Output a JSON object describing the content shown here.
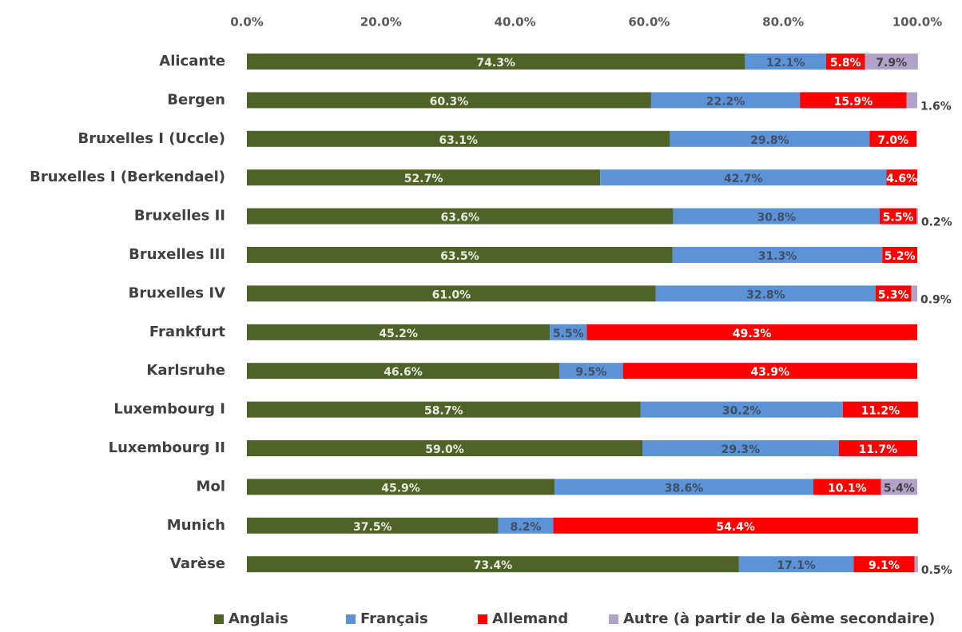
{
  "chart_data": {
    "type": "stacked_barh",
    "categories": [
      "Alicante",
      "Bergen",
      "Bruxelles I (Uccle)",
      "Bruxelles I (Berkendael)",
      "Bruxelles II",
      "Bruxelles III",
      "Bruxelles IV",
      "Frankfurt",
      "Karlsruhe",
      "Luxembourg I",
      "Luxembourg II",
      "Mol",
      "Munich",
      "Varèse"
    ],
    "series": [
      {
        "name": "Anglais",
        "color": "#4f6228",
        "values": [
          74.3,
          60.3,
          63.1,
          52.7,
          63.6,
          63.5,
          61.0,
          45.2,
          46.6,
          58.7,
          59.0,
          45.9,
          37.5,
          73.4
        ],
        "value_labels": [
          "74.3%",
          "60.3%",
          "63.1%",
          "52.7%",
          "63.6%",
          "63.5%",
          "61.0%",
          "45.2%",
          "46.6%",
          "58.7%",
          "59.0%",
          "45.9%",
          "37.5%",
          "73.4%"
        ]
      },
      {
        "name": "Français",
        "color": "#5b93d6",
        "values": [
          12.1,
          22.2,
          29.8,
          42.7,
          30.8,
          31.3,
          32.8,
          5.5,
          9.5,
          30.2,
          29.3,
          38.6,
          8.2,
          17.1
        ],
        "value_labels": [
          "12.1%",
          "22.2%",
          "29.8%",
          "42.7%",
          "30.8%",
          "31.3%",
          "32.8%",
          "5.5%",
          "9.5%",
          "30.2%",
          "29.3%",
          "38.6%",
          "8.2%",
          "17.1%"
        ]
      },
      {
        "name": "Allemand",
        "color": "#ff0000",
        "values": [
          5.8,
          15.9,
          7.0,
          4.6,
          5.5,
          5.2,
          5.3,
          49.3,
          43.9,
          11.2,
          11.7,
          10.1,
          54.4,
          9.1
        ],
        "value_labels": [
          "5.8%",
          "15.9%",
          "7.0%",
          "4.6%",
          "5.5%",
          "5.2%",
          "5.3%",
          "49.3%",
          "43.9%",
          "11.2%",
          "11.7%",
          "10.1%",
          "54.4%",
          "9.1%"
        ]
      },
      {
        "name": "Autre (à partir de la 6ème secondaire)",
        "color": "#b3a2c7",
        "values": [
          7.9,
          1.6,
          null,
          null,
          0.2,
          null,
          0.9,
          null,
          null,
          null,
          null,
          5.4,
          null,
          0.5
        ],
        "value_labels": [
          "7.9%",
          "1.6%",
          null,
          null,
          "0.2%",
          null,
          "0.9%",
          null,
          null,
          null,
          null,
          "5.4%",
          null,
          "0.5%"
        ]
      }
    ],
    "xlim": [
      0,
      100
    ],
    "xticks": [
      {
        "value": 0,
        "label": "0.0%"
      },
      {
        "value": 20,
        "label": "20.0%"
      },
      {
        "value": 40,
        "label": "40.0%"
      },
      {
        "value": 60,
        "label": "60.0%"
      },
      {
        "value": 80,
        "label": "80.0%"
      },
      {
        "value": 100,
        "label": "100.0%"
      }
    ],
    "legend": "bottom"
  }
}
